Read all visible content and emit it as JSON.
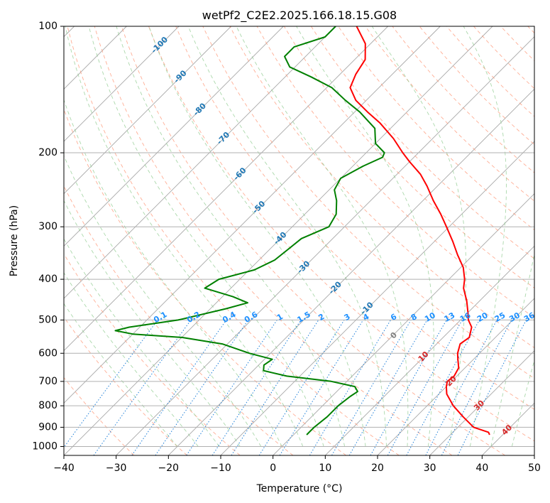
{
  "chart_data": {
    "type": "line",
    "title": "wetPf2_C2E2.2025.166.18.15.G08",
    "xlabel": "Temperature (°C)",
    "ylabel": "Pressure (hPa)",
    "xlim": [
      -40,
      50
    ],
    "ylim": [
      1050,
      100
    ],
    "y_scale": "log",
    "grid": true,
    "x_ticks": [
      -40,
      -30,
      -20,
      -10,
      0,
      10,
      20,
      30,
      40,
      50
    ],
    "x_tick_labels": [
      "−40",
      "−30",
      "−20",
      "−10",
      "0",
      "10",
      "20",
      "30",
      "40",
      "50"
    ],
    "y_ticks": [
      100,
      200,
      300,
      400,
      500,
      600,
      700,
      800,
      900,
      1000
    ],
    "y_tick_labels": [
      "100",
      "200",
      "300",
      "400",
      "500",
      "600",
      "700",
      "800",
      "900",
      "1000"
    ],
    "series": [
      {
        "kind": "temperature",
        "color": "#ff0000",
        "points": [
          [
            938,
            37.5
          ],
          [
            925,
            36.8
          ],
          [
            900,
            33.0
          ],
          [
            850,
            29.0
          ],
          [
            800,
            25.0
          ],
          [
            750,
            21.5
          ],
          [
            720,
            20.0
          ],
          [
            700,
            19.2
          ],
          [
            680,
            19.5
          ],
          [
            650,
            18.8
          ],
          [
            620,
            17.0
          ],
          [
            600,
            15.8
          ],
          [
            570,
            14.5
          ],
          [
            550,
            15.0
          ],
          [
            520,
            13.5
          ],
          [
            500,
            11.5
          ],
          [
            480,
            10.0
          ],
          [
            450,
            7.5
          ],
          [
            420,
            4.5
          ],
          [
            400,
            3.0
          ],
          [
            375,
            0.5
          ],
          [
            350,
            -3.0
          ],
          [
            325,
            -6.5
          ],
          [
            300,
            -10.5
          ],
          [
            280,
            -14.0
          ],
          [
            260,
            -18.0
          ],
          [
            240,
            -22.0
          ],
          [
            225,
            -25.5
          ],
          [
            210,
            -30.0
          ],
          [
            200,
            -33.0
          ],
          [
            185,
            -37.5
          ],
          [
            170,
            -43.0
          ],
          [
            160,
            -47.5
          ],
          [
            150,
            -52.0
          ],
          [
            140,
            -55.5
          ],
          [
            130,
            -57.0
          ],
          [
            120,
            -58.0
          ],
          [
            110,
            -61.0
          ],
          [
            100,
            -66.0
          ]
        ]
      },
      {
        "kind": "dewpoint",
        "color": "#008000",
        "points": [
          [
            938,
            2.5
          ],
          [
            920,
            2.5
          ],
          [
            900,
            2.5
          ],
          [
            850,
            3.0
          ],
          [
            800,
            3.0
          ],
          [
            760,
            3.5
          ],
          [
            740,
            4.0
          ],
          [
            720,
            2.5
          ],
          [
            700,
            -3.0
          ],
          [
            680,
            -12.5
          ],
          [
            660,
            -18.0
          ],
          [
            640,
            -19.0
          ],
          [
            620,
            -18.5
          ],
          [
            600,
            -24.0
          ],
          [
            570,
            -31.0
          ],
          [
            550,
            -40.0
          ],
          [
            540,
            -50.0
          ],
          [
            530,
            -54.0
          ],
          [
            520,
            -52.0
          ],
          [
            500,
            -44.0
          ],
          [
            470,
            -37.0
          ],
          [
            455,
            -34.0
          ],
          [
            440,
            -38.0
          ],
          [
            420,
            -45.0
          ],
          [
            400,
            -44.0
          ],
          [
            380,
            -39.0
          ],
          [
            360,
            -37.0
          ],
          [
            340,
            -36.5
          ],
          [
            320,
            -36.0
          ],
          [
            300,
            -33.0
          ],
          [
            280,
            -34.0
          ],
          [
            260,
            -36.5
          ],
          [
            245,
            -39.0
          ],
          [
            230,
            -40.0
          ],
          [
            215,
            -38.0
          ],
          [
            205,
            -36.0
          ],
          [
            200,
            -36.5
          ],
          [
            190,
            -40.0
          ],
          [
            175,
            -43.0
          ],
          [
            160,
            -49.0
          ],
          [
            150,
            -54.0
          ],
          [
            140,
            -59.0
          ],
          [
            132,
            -65.0
          ],
          [
            125,
            -71.0
          ],
          [
            118,
            -74.0
          ],
          [
            112,
            -74.0
          ],
          [
            106,
            -70.0
          ],
          [
            100,
            -70.0
          ]
        ]
      }
    ],
    "isotherm_labels": {
      "color": "#1f77b4",
      "values": [
        -100,
        -90,
        -80,
        -70,
        -60,
        -50,
        -40,
        -30,
        -20,
        -10
      ]
    },
    "mixing_ratio_labels": {
      "color": "#1e90ff",
      "values": [
        "0.1",
        "0.2",
        "0.4",
        "0.6",
        "1",
        "1.5",
        "2",
        "3",
        "4",
        "6",
        "8",
        "10",
        "13",
        "16",
        "20",
        "25",
        "30",
        "36"
      ]
    },
    "warm_isotherm_labels": {
      "color": "#d62728",
      "values": [
        10,
        20,
        30,
        40
      ]
    },
    "zero_isotherm_label": {
      "color": "#808080",
      "value": "0"
    }
  }
}
